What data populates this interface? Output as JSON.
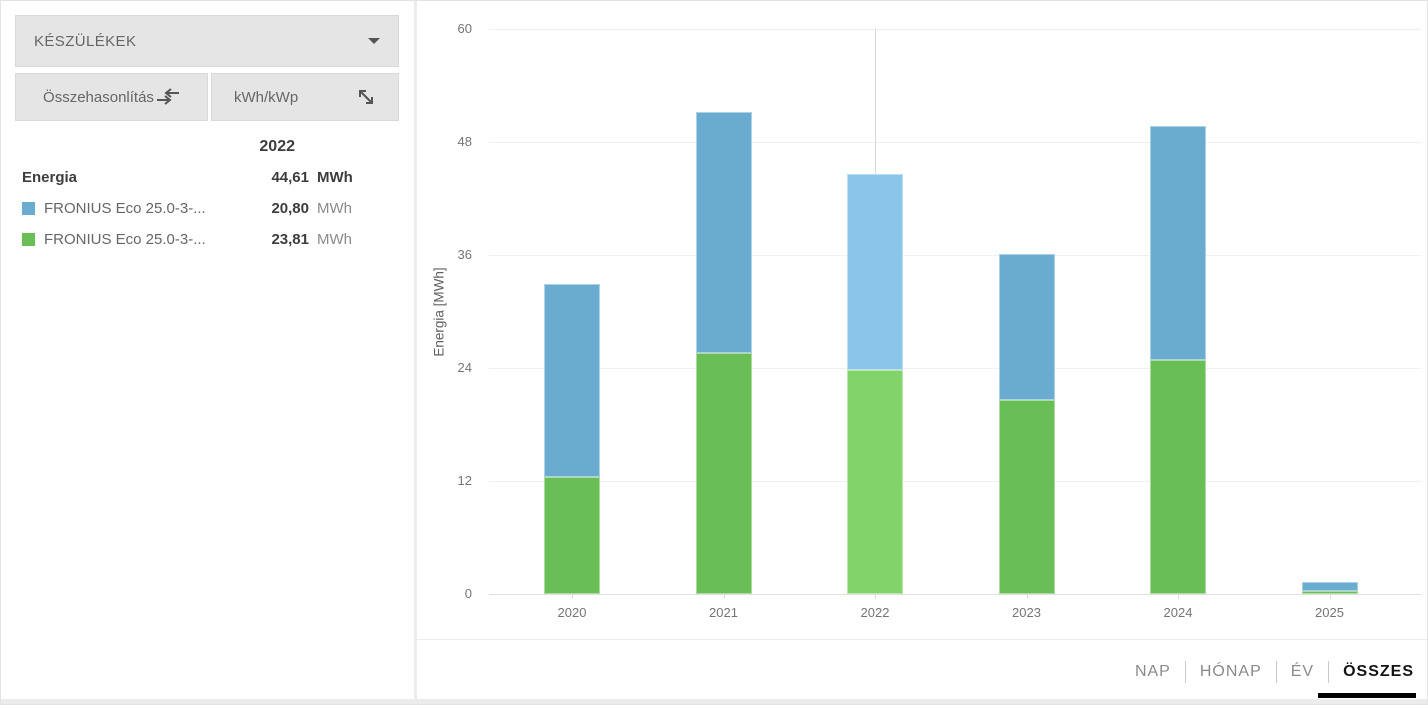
{
  "colors": {
    "series_blue": "#6AACD0",
    "series_green": "#6ABE56",
    "series_blue_highlight": "#8AC6E8",
    "series_green_highlight": "#82D369",
    "grid": "#F0F0F0",
    "axis": "#E0E0E0",
    "cursor_line": "#D9D9D9",
    "active_tab_underline": "#000000"
  },
  "device_panel": {
    "devices_dropdown_label": "KÉSZÜLÉKEK",
    "compare_button_label": "Összehasonlítás",
    "unit_toggle_label": "kWh/kWp",
    "table": {
      "year_header": "2022",
      "rows": [
        {
          "label": "Energia",
          "value": "44,61",
          "unit": "MWh"
        },
        {
          "label": "FRONIUS Eco 25.0-3-...",
          "value": "20,80",
          "unit": "MWh",
          "swatch": "#6AACD0"
        },
        {
          "label": "FRONIUS Eco 25.0-3-...",
          "value": "23,81",
          "unit": "MWh",
          "swatch": "#6ABE56"
        }
      ]
    }
  },
  "chart_data": {
    "type": "bar",
    "stacked": true,
    "title": "",
    "xlabel": "",
    "ylabel": "Energia [MWh]",
    "categories": [
      "2020",
      "2021",
      "2022",
      "2023",
      "2024",
      "2025"
    ],
    "series": [
      {
        "name": "FRONIUS Eco 25.0-3-...",
        "color_key": "series_green",
        "highlight_color_key": "series_green_highlight",
        "values": [
          12.4,
          25.6,
          23.81,
          20.6,
          24.8,
          0.3
        ]
      },
      {
        "name": "FRONIUS Eco 25.0-3-...",
        "color_key": "series_blue",
        "highlight_color_key": "series_blue_highlight",
        "values": [
          20.5,
          25.6,
          20.8,
          15.5,
          24.9,
          1.0
        ]
      }
    ],
    "ylim": [
      0,
      60
    ],
    "yticks": [
      0,
      12,
      24,
      36,
      48,
      60
    ],
    "highlighted_category": "2022",
    "grid": true,
    "legend_position": "left-panel-table"
  },
  "tabs": [
    {
      "label": "NAP",
      "active": false
    },
    {
      "label": "HÓNAP",
      "active": false
    },
    {
      "label": "ÉV",
      "active": false
    },
    {
      "label": "ÖSSZES",
      "active": true
    }
  ]
}
